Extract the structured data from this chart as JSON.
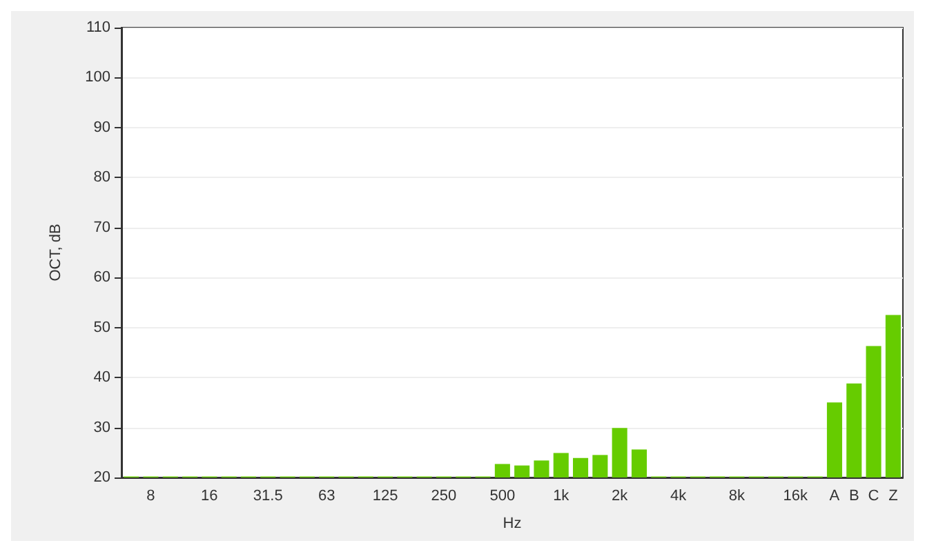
{
  "chart_data": {
    "type": "bar",
    "xlabel": "Hz",
    "ylabel": "OCT, dB",
    "categories": [
      null,
      "8",
      null,
      null,
      "16",
      null,
      null,
      "31.5",
      null,
      null,
      "63",
      null,
      null,
      "125",
      null,
      null,
      "250",
      null,
      null,
      "500",
      null,
      null,
      "1k",
      null,
      null,
      "2k",
      null,
      null,
      "4k",
      null,
      null,
      "8k",
      null,
      null,
      "16k",
      null,
      "A",
      "B",
      "C",
      "Z"
    ],
    "series": [
      {
        "color": "#66cc00",
        "values": [
          20.2,
          20.2,
          20.2,
          20.2,
          20.2,
          20.2,
          20.2,
          20.2,
          20.2,
          20.2,
          20.2,
          20.2,
          20.2,
          20.2,
          20.2,
          20.2,
          20.2,
          20.2,
          20.2,
          22.7,
          22.4,
          23.4,
          24.9,
          23.9,
          24.5,
          29.9,
          25.6,
          20.2,
          20.2,
          20.2,
          20.2,
          20.2,
          20.2,
          20.2,
          20.2,
          20.2,
          35,
          38.8,
          46.3,
          52.5
        ]
      }
    ],
    "ylim": [
      20,
      110
    ],
    "yticks": [
      20,
      30,
      40,
      50,
      60,
      70,
      80,
      90,
      100,
      110
    ],
    "grid": "y"
  }
}
